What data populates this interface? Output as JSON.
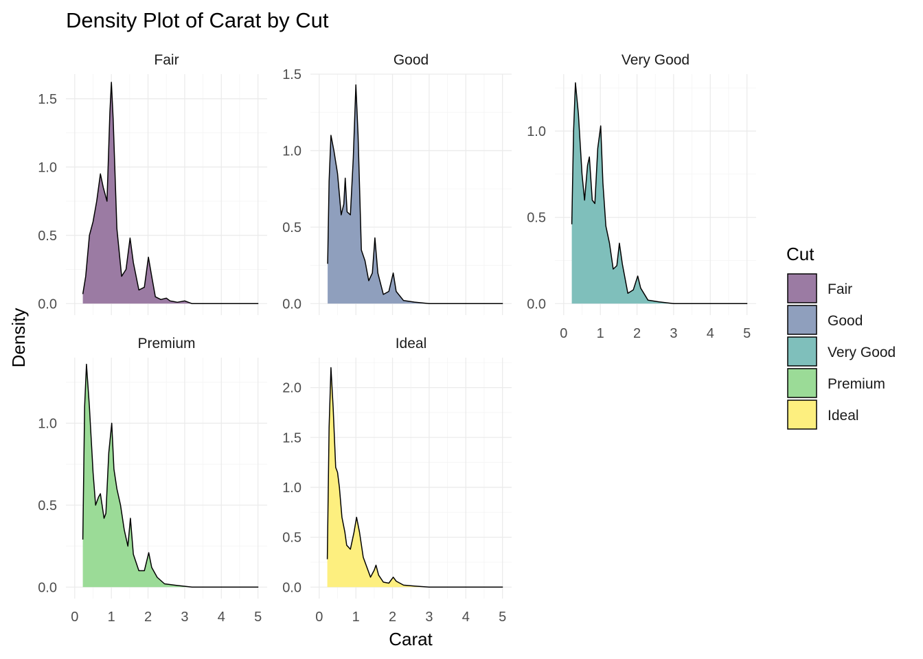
{
  "chart_data": {
    "type": "area",
    "subtype": "faceted-density",
    "title": "Density Plot of Carat by Cut",
    "xlabel": "Carat",
    "ylabel": "Density",
    "xlim": [
      0,
      5
    ],
    "x_ticks": [
      0,
      1,
      2,
      3,
      4,
      5
    ],
    "legend": {
      "title": "Cut",
      "position": "right",
      "entries": [
        "Fair",
        "Good",
        "Very Good",
        "Premium",
        "Ideal"
      ]
    },
    "grid": true,
    "facets": [
      {
        "name": "Fair",
        "color": "#9b7ba3",
        "ylim": [
          0,
          1.68
        ],
        "y_ticks": [
          {
            "v": 0,
            "label": "0.0"
          },
          {
            "v": 0.5,
            "label": "0.5"
          },
          {
            "v": 1.0,
            "label": "1.0"
          },
          {
            "v": 1.5,
            "label": "1.5"
          }
        ],
        "points": [
          [
            0.22,
            0.07
          ],
          [
            0.3,
            0.2
          ],
          [
            0.4,
            0.5
          ],
          [
            0.5,
            0.6
          ],
          [
            0.6,
            0.75
          ],
          [
            0.7,
            0.95
          ],
          [
            0.78,
            0.85
          ],
          [
            0.88,
            0.75
          ],
          [
            0.96,
            1.4
          ],
          [
            1.0,
            1.62
          ],
          [
            1.05,
            1.35
          ],
          [
            1.15,
            0.55
          ],
          [
            1.28,
            0.2
          ],
          [
            1.4,
            0.25
          ],
          [
            1.51,
            0.48
          ],
          [
            1.6,
            0.3
          ],
          [
            1.75,
            0.1
          ],
          [
            1.9,
            0.12
          ],
          [
            2.01,
            0.34
          ],
          [
            2.1,
            0.2
          ],
          [
            2.2,
            0.05
          ],
          [
            2.35,
            0.03
          ],
          [
            2.5,
            0.04
          ],
          [
            2.6,
            0.02
          ],
          [
            2.8,
            0.01
          ],
          [
            3.0,
            0.02
          ],
          [
            3.2,
            0.0
          ],
          [
            5.01,
            0.0
          ]
        ]
      },
      {
        "name": "Good",
        "color": "#8f9fbd",
        "ylim": [
          0,
          1.5
        ],
        "y_ticks": [
          {
            "v": 0,
            "label": "0.0"
          },
          {
            "v": 0.5,
            "label": "0.5"
          },
          {
            "v": 1.0,
            "label": "1.0"
          },
          {
            "v": 1.5,
            "label": "1.5"
          }
        ],
        "points": [
          [
            0.23,
            0.26
          ],
          [
            0.27,
            0.8
          ],
          [
            0.32,
            1.1
          ],
          [
            0.4,
            1.0
          ],
          [
            0.5,
            0.85
          ],
          [
            0.6,
            0.58
          ],
          [
            0.67,
            0.65
          ],
          [
            0.71,
            0.82
          ],
          [
            0.76,
            0.6
          ],
          [
            0.85,
            0.58
          ],
          [
            0.93,
            0.95
          ],
          [
            1.0,
            1.43
          ],
          [
            1.06,
            1.1
          ],
          [
            1.15,
            0.35
          ],
          [
            1.25,
            0.28
          ],
          [
            1.35,
            0.15
          ],
          [
            1.45,
            0.2
          ],
          [
            1.52,
            0.43
          ],
          [
            1.6,
            0.2
          ],
          [
            1.75,
            0.06
          ],
          [
            1.9,
            0.08
          ],
          [
            2.02,
            0.2
          ],
          [
            2.1,
            0.08
          ],
          [
            2.3,
            0.02
          ],
          [
            2.6,
            0.01
          ],
          [
            3.0,
            0.0
          ],
          [
            5.01,
            0.0
          ]
        ]
      },
      {
        "name": "Very Good",
        "color": "#7fbfbb",
        "ylim": [
          0,
          1.33
        ],
        "y_ticks": [
          {
            "v": 0,
            "label": "0.0"
          },
          {
            "v": 0.5,
            "label": "0.5"
          },
          {
            "v": 1.0,
            "label": "1.0"
          }
        ],
        "points": [
          [
            0.22,
            0.46
          ],
          [
            0.27,
            1.0
          ],
          [
            0.32,
            1.28
          ],
          [
            0.4,
            1.1
          ],
          [
            0.5,
            0.75
          ],
          [
            0.57,
            0.6
          ],
          [
            0.65,
            0.8
          ],
          [
            0.7,
            0.85
          ],
          [
            0.78,
            0.6
          ],
          [
            0.85,
            0.58
          ],
          [
            0.93,
            0.9
          ],
          [
            1.01,
            1.03
          ],
          [
            1.07,
            0.7
          ],
          [
            1.15,
            0.45
          ],
          [
            1.25,
            0.35
          ],
          [
            1.35,
            0.2
          ],
          [
            1.45,
            0.22
          ],
          [
            1.52,
            0.35
          ],
          [
            1.6,
            0.23
          ],
          [
            1.75,
            0.06
          ],
          [
            1.9,
            0.08
          ],
          [
            2.02,
            0.16
          ],
          [
            2.1,
            0.09
          ],
          [
            2.3,
            0.02
          ],
          [
            2.6,
            0.01
          ],
          [
            3.0,
            0.0
          ],
          [
            5.01,
            0.0
          ]
        ]
      },
      {
        "name": "Premium",
        "color": "#9bdb97",
        "ylim": [
          0,
          1.4
        ],
        "y_ticks": [
          {
            "v": 0,
            "label": "0.0"
          },
          {
            "v": 0.5,
            "label": "0.5"
          },
          {
            "v": 1.0,
            "label": "1.0"
          }
        ],
        "points": [
          [
            0.22,
            0.29
          ],
          [
            0.27,
            1.1
          ],
          [
            0.32,
            1.36
          ],
          [
            0.4,
            1.1
          ],
          [
            0.5,
            0.7
          ],
          [
            0.57,
            0.5
          ],
          [
            0.65,
            0.55
          ],
          [
            0.7,
            0.57
          ],
          [
            0.8,
            0.42
          ],
          [
            0.85,
            0.45
          ],
          [
            0.93,
            0.82
          ],
          [
            1.01,
            1.0
          ],
          [
            1.07,
            0.72
          ],
          [
            1.15,
            0.6
          ],
          [
            1.25,
            0.5
          ],
          [
            1.35,
            0.35
          ],
          [
            1.45,
            0.25
          ],
          [
            1.52,
            0.42
          ],
          [
            1.6,
            0.2
          ],
          [
            1.75,
            0.1
          ],
          [
            1.9,
            0.1
          ],
          [
            2.02,
            0.21
          ],
          [
            2.1,
            0.12
          ],
          [
            2.25,
            0.06
          ],
          [
            2.45,
            0.02
          ],
          [
            2.8,
            0.01
          ],
          [
            3.2,
            0.0
          ],
          [
            5.01,
            0.0
          ]
        ]
      },
      {
        "name": "Ideal",
        "color": "#fdef7f",
        "ylim": [
          0,
          2.3
        ],
        "y_ticks": [
          {
            "v": 0,
            "label": "0.0"
          },
          {
            "v": 0.5,
            "label": "0.5"
          },
          {
            "v": 1.0,
            "label": "1.0"
          },
          {
            "v": 1.5,
            "label": "1.5"
          },
          {
            "v": 2.0,
            "label": "2.0"
          }
        ],
        "points": [
          [
            0.22,
            0.28
          ],
          [
            0.27,
            1.6
          ],
          [
            0.32,
            2.2
          ],
          [
            0.38,
            1.8
          ],
          [
            0.45,
            1.2
          ],
          [
            0.5,
            1.15
          ],
          [
            0.55,
            1.0
          ],
          [
            0.62,
            0.7
          ],
          [
            0.7,
            0.55
          ],
          [
            0.75,
            0.42
          ],
          [
            0.85,
            0.38
          ],
          [
            0.95,
            0.55
          ],
          [
            1.02,
            0.7
          ],
          [
            1.1,
            0.55
          ],
          [
            1.2,
            0.3
          ],
          [
            1.3,
            0.2
          ],
          [
            1.4,
            0.1
          ],
          [
            1.5,
            0.17
          ],
          [
            1.55,
            0.22
          ],
          [
            1.62,
            0.12
          ],
          [
            1.75,
            0.05
          ],
          [
            1.9,
            0.04
          ],
          [
            2.02,
            0.1
          ],
          [
            2.1,
            0.06
          ],
          [
            2.3,
            0.02
          ],
          [
            2.6,
            0.01
          ],
          [
            3.0,
            0.0
          ],
          [
            5.01,
            0.0
          ]
        ]
      }
    ]
  }
}
